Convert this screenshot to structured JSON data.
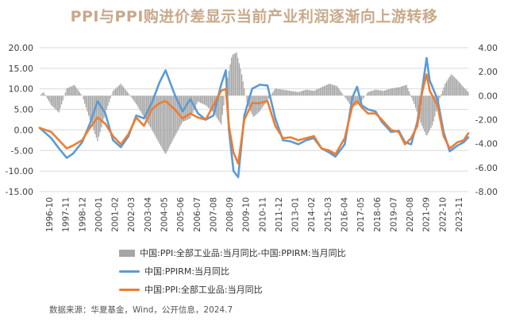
{
  "title": "PPI与PPI购进价差显示当前产业利润逐渐向上游转移",
  "source": "数据来源：华夏基金，Wind，公开信息，2024.7",
  "colors": {
    "diff_bar": "#a6a6a6",
    "ppirm_line": "#5b9bd5",
    "ppi_line": "#ed7d31",
    "grid": "#d9d9d9",
    "axis_text": "#404040"
  },
  "chart_data": {
    "type": "bar+line",
    "title": "PPI与PPI购进价差显示当前产业利润逐渐向上游转移",
    "left_axis": {
      "ylim": [
        -15,
        20
      ],
      "ticks": [
        "20.00",
        "15.00",
        "10.00",
        "5.00",
        "0.00",
        "-5.00",
        "-10.00",
        "-15.00"
      ],
      "tick_values": [
        20,
        15,
        10,
        5,
        0,
        -5,
        -10,
        -15
      ]
    },
    "right_axis": {
      "ylim": [
        -8,
        4
      ],
      "ticks": [
        "4.00",
        "2.00",
        "0.00",
        "-2.00",
        "-4.00",
        "-6.00",
        "-8.00"
      ],
      "tick_values": [
        4,
        2,
        0,
        -2,
        -4,
        -6,
        -8
      ]
    },
    "x_axis": {
      "range": [
        1996.75,
        2024.5
      ],
      "ticks": [
        "1996-10",
        "1997-11",
        "1998-12",
        "2000-01",
        "2001-02",
        "2002-03",
        "2003-04",
        "2004-05",
        "2005-06",
        "2006-07",
        "2007-08",
        "2008-09",
        "2009-10",
        "2010-11",
        "2011-12",
        "2013-01",
        "2014-02",
        "2015-03",
        "2016-04",
        "2017-05",
        "2018-06",
        "2019-07",
        "2020-08",
        "2021-09",
        "2022-10",
        "2023-11"
      ]
    },
    "grid": "horizontal",
    "legend_position": "bottom",
    "series": [
      {
        "name": "中国:PPI:全部工业品:当月同比-中国:PPIRM:当月同比",
        "type": "bar",
        "axis": "right",
        "x": [
          1996.75,
          1997.0,
          1997.5,
          1998.0,
          1998.5,
          1999.0,
          1999.5,
          2000.0,
          2000.5,
          2001.0,
          2001.5,
          2002.0,
          2002.5,
          2003.0,
          2003.5,
          2004.0,
          2004.5,
          2004.9,
          2005.5,
          2006.0,
          2006.5,
          2007.0,
          2007.5,
          2008.0,
          2008.5,
          2008.9,
          2009.2,
          2009.5,
          2009.8,
          2010.2,
          2010.6,
          2011.0,
          2011.5,
          2012.0,
          2012.5,
          2013.0,
          2013.5,
          2014.0,
          2014.5,
          2015.0,
          2015.5,
          2016.0,
          2016.5,
          2017.0,
          2017.5,
          2018.0,
          2018.5,
          2019.0,
          2019.5,
          2020.0,
          2020.5,
          2021.0,
          2021.4,
          2021.8,
          2022.2,
          2022.6,
          2023.0,
          2023.4,
          2023.8,
          2024.2,
          2024.5
        ],
        "values": [
          0.0,
          0.3,
          -0.8,
          -1.4,
          0.6,
          0.9,
          0.0,
          -2.0,
          -3.8,
          -1.5,
          0.4,
          1.0,
          0.2,
          -0.7,
          -1.8,
          -2.8,
          -4.0,
          -4.9,
          -3.4,
          -2.2,
          -1.9,
          -0.5,
          -0.8,
          -1.4,
          -2.4,
          1.4,
          3.4,
          3.6,
          2.0,
          -0.8,
          -1.8,
          -1.3,
          -0.4,
          0.6,
          0.5,
          0.4,
          0.3,
          0.5,
          0.4,
          0.7,
          1.0,
          0.8,
          -0.1,
          -1.0,
          -0.6,
          0.3,
          0.5,
          0.4,
          0.6,
          0.7,
          0.9,
          -0.7,
          -2.2,
          -3.4,
          -2.4,
          -0.4,
          1.0,
          1.8,
          1.3,
          0.7,
          0.3
        ]
      },
      {
        "name": "中国:PPIRM:当月同比",
        "type": "line",
        "axis": "left",
        "x": [
          1996.75,
          1997.5,
          1998.0,
          1998.5,
          1998.9,
          1999.5,
          2000.0,
          2000.5,
          2001.0,
          2001.5,
          2002.0,
          2002.5,
          2003.0,
          2003.5,
          2004.0,
          2004.5,
          2004.9,
          2005.5,
          2006.0,
          2006.5,
          2007.0,
          2007.5,
          2008.0,
          2008.5,
          2008.8,
          2009.0,
          2009.3,
          2009.6,
          2010.0,
          2010.5,
          2011.0,
          2011.5,
          2012.0,
          2012.5,
          2013.0,
          2013.5,
          2014.0,
          2014.5,
          2015.0,
          2015.5,
          2015.9,
          2016.5,
          2017.0,
          2017.3,
          2017.6,
          2018.0,
          2018.5,
          2018.9,
          2019.5,
          2020.0,
          2020.4,
          2020.8,
          2021.2,
          2021.5,
          2021.8,
          2022.0,
          2022.5,
          2022.9,
          2023.3,
          2023.8,
          2024.2,
          2024.5
        ],
        "values": [
          0.5,
          -2.0,
          -4.5,
          -6.8,
          -5.8,
          -3.0,
          1.5,
          7.0,
          4.0,
          -2.5,
          -4.2,
          -1.5,
          3.5,
          2.8,
          6.5,
          11.5,
          14.5,
          8.5,
          4.5,
          7.5,
          4.0,
          2.5,
          3.5,
          11.0,
          14.5,
          0.0,
          -10.0,
          -11.5,
          3.5,
          10.0,
          11.0,
          10.8,
          2.8,
          -2.5,
          -2.8,
          -3.5,
          -2.5,
          -2.0,
          -4.5,
          -5.5,
          -6.5,
          -3.5,
          8.0,
          10.5,
          6.0,
          5.0,
          4.5,
          2.0,
          -0.5,
          -0.2,
          -3.0,
          -3.5,
          2.0,
          9.5,
          17.5,
          12.0,
          7.5,
          -0.5,
          -5.2,
          -3.8,
          -3.0,
          -1.8
        ]
      },
      {
        "name": "中国:PPI:全部工业品:当月同比",
        "type": "line",
        "axis": "left",
        "x": [
          1996.75,
          1997.5,
          1998.0,
          1998.5,
          1998.9,
          1999.5,
          2000.0,
          2000.5,
          2001.0,
          2001.5,
          2002.0,
          2002.5,
          2003.0,
          2003.5,
          2004.0,
          2004.5,
          2004.9,
          2005.5,
          2006.0,
          2006.5,
          2007.0,
          2007.5,
          2008.0,
          2008.5,
          2008.8,
          2009.0,
          2009.3,
          2009.6,
          2010.0,
          2010.5,
          2011.0,
          2011.5,
          2012.0,
          2012.5,
          2013.0,
          2013.5,
          2014.0,
          2014.5,
          2015.0,
          2015.5,
          2015.9,
          2016.5,
          2017.0,
          2017.3,
          2017.6,
          2018.0,
          2018.5,
          2018.9,
          2019.5,
          2020.0,
          2020.4,
          2020.8,
          2021.2,
          2021.5,
          2021.8,
          2022.0,
          2022.5,
          2022.9,
          2023.3,
          2023.8,
          2024.2,
          2024.5
        ],
        "values": [
          0.5,
          -0.5,
          -2.5,
          -4.5,
          -3.8,
          -2.5,
          0.5,
          3.0,
          1.5,
          -1.5,
          -3.5,
          -1.0,
          3.0,
          1.0,
          5.0,
          6.5,
          7.0,
          5.0,
          2.8,
          4.0,
          3.0,
          2.5,
          6.0,
          9.5,
          10.0,
          1.0,
          -5.5,
          -8.2,
          2.5,
          6.5,
          6.5,
          7.0,
          1.0,
          -2.0,
          -1.8,
          -2.5,
          -2.0,
          -1.5,
          -4.5,
          -5.0,
          -5.9,
          -2.0,
          6.0,
          7.0,
          5.5,
          4.0,
          4.0,
          2.5,
          0.0,
          -0.5,
          -3.5,
          -2.0,
          1.0,
          9.0,
          13.5,
          9.5,
          6.0,
          -1.5,
          -4.5,
          -3.0,
          -2.5,
          -0.8
        ]
      }
    ]
  }
}
